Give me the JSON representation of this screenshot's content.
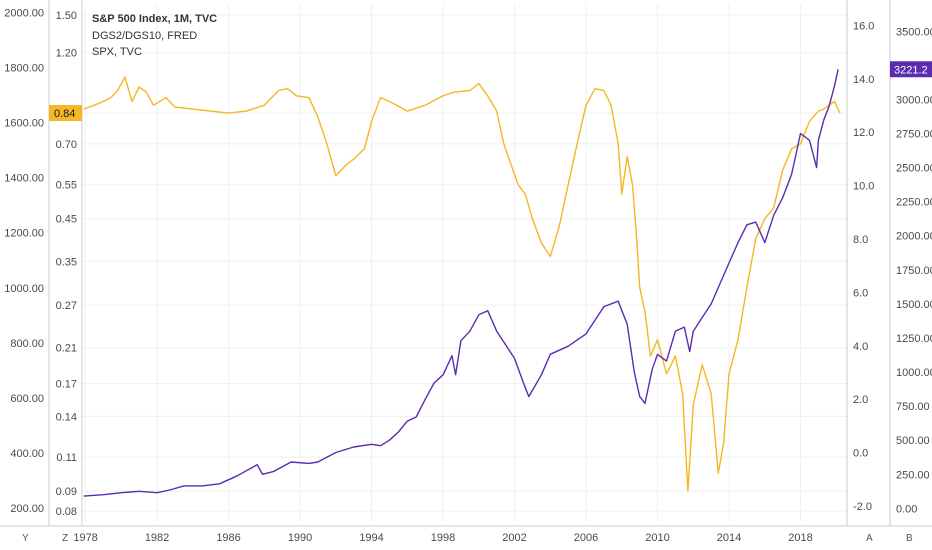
{
  "legend": {
    "line1": "S&P 500 Index, 1M, TVC",
    "line2": "DGS2/DGS10, FRED",
    "line3": "SPX, TVC"
  },
  "corners": {
    "y": "Y",
    "z": "Z",
    "a": "A",
    "b": "B"
  },
  "colors": {
    "spx": "#5b2bb0",
    "ratio": "#f5b722",
    "grid": "#eef0f3",
    "axis": "#c9ccd1"
  },
  "chart_data": {
    "type": "line",
    "xlabel": "",
    "x_ticks": [
      "1978",
      "1982",
      "1986",
      "1990",
      "1994",
      "1998",
      "2002",
      "2006",
      "2010",
      "2014",
      "2018"
    ],
    "xlim": [
      1977.8,
      2020.6
    ],
    "axes": {
      "left_outer": {
        "ticks": [
          "2000.00",
          "1800.00",
          "1600.00",
          "1400.00",
          "1200.00",
          "1000.00",
          "800.00",
          "600.00",
          "400.00",
          "200.00"
        ],
        "range": [
          150,
          2030
        ]
      },
      "left_inner": {
        "ticks": [
          "1.50",
          "1.20",
          "0.84",
          "0.70",
          "0.55",
          "0.45",
          "0.35",
          "0.27",
          "0.21",
          "0.17",
          "0.14",
          "0.11",
          "0.09",
          "0.08"
        ],
        "scale": "log",
        "range": [
          0.075,
          1.6
        ]
      },
      "right_inner": {
        "ticks": [
          "16.0",
          "14.0",
          "12.0",
          "10.0",
          "8.0",
          "6.0",
          "4.0",
          "2.0",
          "0.0",
          "-2.0"
        ],
        "range": [
          -2.6,
          16.8
        ]
      },
      "right_outer": {
        "ticks": [
          "3500.00",
          "3250.00",
          "3000.00",
          "2750.00",
          "2500.00",
          "2250.00",
          "2000.00",
          "1750.00",
          "1500.00",
          "1250.00",
          "1000.00",
          "750.00",
          "500.00",
          "250.00",
          "0.00"
        ],
        "range": [
          -100,
          3700
        ]
      }
    },
    "badges": {
      "ratio_last": "0.84",
      "spx_last": "3221.2"
    },
    "series": [
      {
        "name": "DGS2/DGS10, FRED",
        "axis": "left_inner",
        "x": [
          1977.9,
          1978.5,
          1979.0,
          1979.4,
          1979.8,
          1980.2,
          1980.6,
          1981.0,
          1981.4,
          1981.8,
          1982.5,
          1983.0,
          1984.0,
          1985.0,
          1986.0,
          1987.0,
          1988.0,
          1988.8,
          1989.3,
          1989.8,
          1990.5,
          1991.0,
          1991.5,
          1992.0,
          1992.6,
          1993.0,
          1993.6,
          1994.0,
          1994.5,
          1995.0,
          1996.0,
          1997.0,
          1998.0,
          1998.6,
          1999.5,
          2000.0,
          2000.5,
          2001.0,
          2001.4,
          2001.8,
          2002.2,
          2002.6,
          2003.0,
          2003.5,
          2004.0,
          2004.5,
          2005.0,
          2005.5,
          2006.0,
          2006.5,
          2007.0,
          2007.4,
          2007.8,
          2008.0,
          2008.3,
          2008.6,
          2008.8,
          2009.0,
          2009.3,
          2009.6,
          2010.0,
          2010.5,
          2011.0,
          2011.4,
          2011.7,
          2012.0,
          2012.5,
          2013.0,
          2013.4,
          2013.7,
          2014.0,
          2014.5,
          2015.0,
          2015.5,
          2016.0,
          2016.5,
          2017.0,
          2017.5,
          2018.0,
          2018.5,
          2019.0,
          2019.3,
          2019.6,
          2019.9,
          2020.2
        ],
        "values": [
          0.86,
          0.88,
          0.9,
          0.92,
          0.96,
          1.04,
          0.9,
          0.98,
          0.95,
          0.88,
          0.92,
          0.87,
          0.86,
          0.85,
          0.84,
          0.85,
          0.88,
          0.96,
          0.97,
          0.93,
          0.92,
          0.82,
          0.7,
          0.58,
          0.62,
          0.64,
          0.68,
          0.8,
          0.92,
          0.9,
          0.85,
          0.88,
          0.93,
          0.95,
          0.96,
          1.0,
          0.93,
          0.85,
          0.7,
          0.62,
          0.55,
          0.52,
          0.45,
          0.39,
          0.36,
          0.43,
          0.55,
          0.7,
          0.88,
          0.97,
          0.96,
          0.88,
          0.7,
          0.52,
          0.65,
          0.55,
          0.42,
          0.3,
          0.26,
          0.2,
          0.22,
          0.18,
          0.2,
          0.16,
          0.09,
          0.15,
          0.19,
          0.16,
          0.1,
          0.12,
          0.18,
          0.22,
          0.3,
          0.4,
          0.45,
          0.48,
          0.6,
          0.68,
          0.7,
          0.8,
          0.85,
          0.86,
          0.88,
          0.9,
          0.84
        ]
      },
      {
        "name": "SPX, TVC",
        "axis": "right_outer",
        "x": [
          1977.9,
          1979.0,
          1980.0,
          1981.0,
          1982.0,
          1982.7,
          1983.5,
          1984.5,
          1985.5,
          1986.5,
          1987.6,
          1987.9,
          1988.5,
          1989.5,
          1990.5,
          1991.0,
          1992.0,
          1993.0,
          1994.0,
          1994.5,
          1995.0,
          1995.5,
          1996.0,
          1996.5,
          1997.0,
          1997.5,
          1998.0,
          1998.5,
          1998.7,
          1999.0,
          1999.5,
          2000.0,
          2000.5,
          2001.0,
          2001.5,
          2002.0,
          2002.5,
          2002.8,
          2003.5,
          2004.0,
          2005.0,
          2006.0,
          2007.0,
          2007.8,
          2008.3,
          2008.7,
          2009.0,
          2009.3,
          2009.7,
          2010.0,
          2010.5,
          2011.0,
          2011.5,
          2011.8,
          2012.0,
          2012.5,
          2013.0,
          2013.5,
          2014.0,
          2014.5,
          2015.0,
          2015.5,
          2016.0,
          2016.5,
          2017.0,
          2017.5,
          2018.0,
          2018.5,
          2018.9,
          2019.0,
          2019.3,
          2019.6,
          2019.9,
          2020.1
        ],
        "values": [
          90,
          100,
          115,
          125,
          115,
          135,
          165,
          165,
          180,
          240,
          320,
          250,
          270,
          340,
          330,
          340,
          410,
          450,
          470,
          460,
          500,
          560,
          640,
          670,
          800,
          920,
          980,
          1120,
          980,
          1230,
          1300,
          1420,
          1450,
          1300,
          1200,
          1100,
          920,
          820,
          980,
          1130,
          1190,
          1280,
          1480,
          1520,
          1350,
          1000,
          820,
          770,
          1020,
          1130,
          1080,
          1300,
          1330,
          1150,
          1300,
          1400,
          1500,
          1650,
          1800,
          1950,
          2080,
          2100,
          1950,
          2150,
          2280,
          2450,
          2750,
          2700,
          2500,
          2700,
          2850,
          2950,
          3100,
          3221
        ]
      }
    ]
  }
}
